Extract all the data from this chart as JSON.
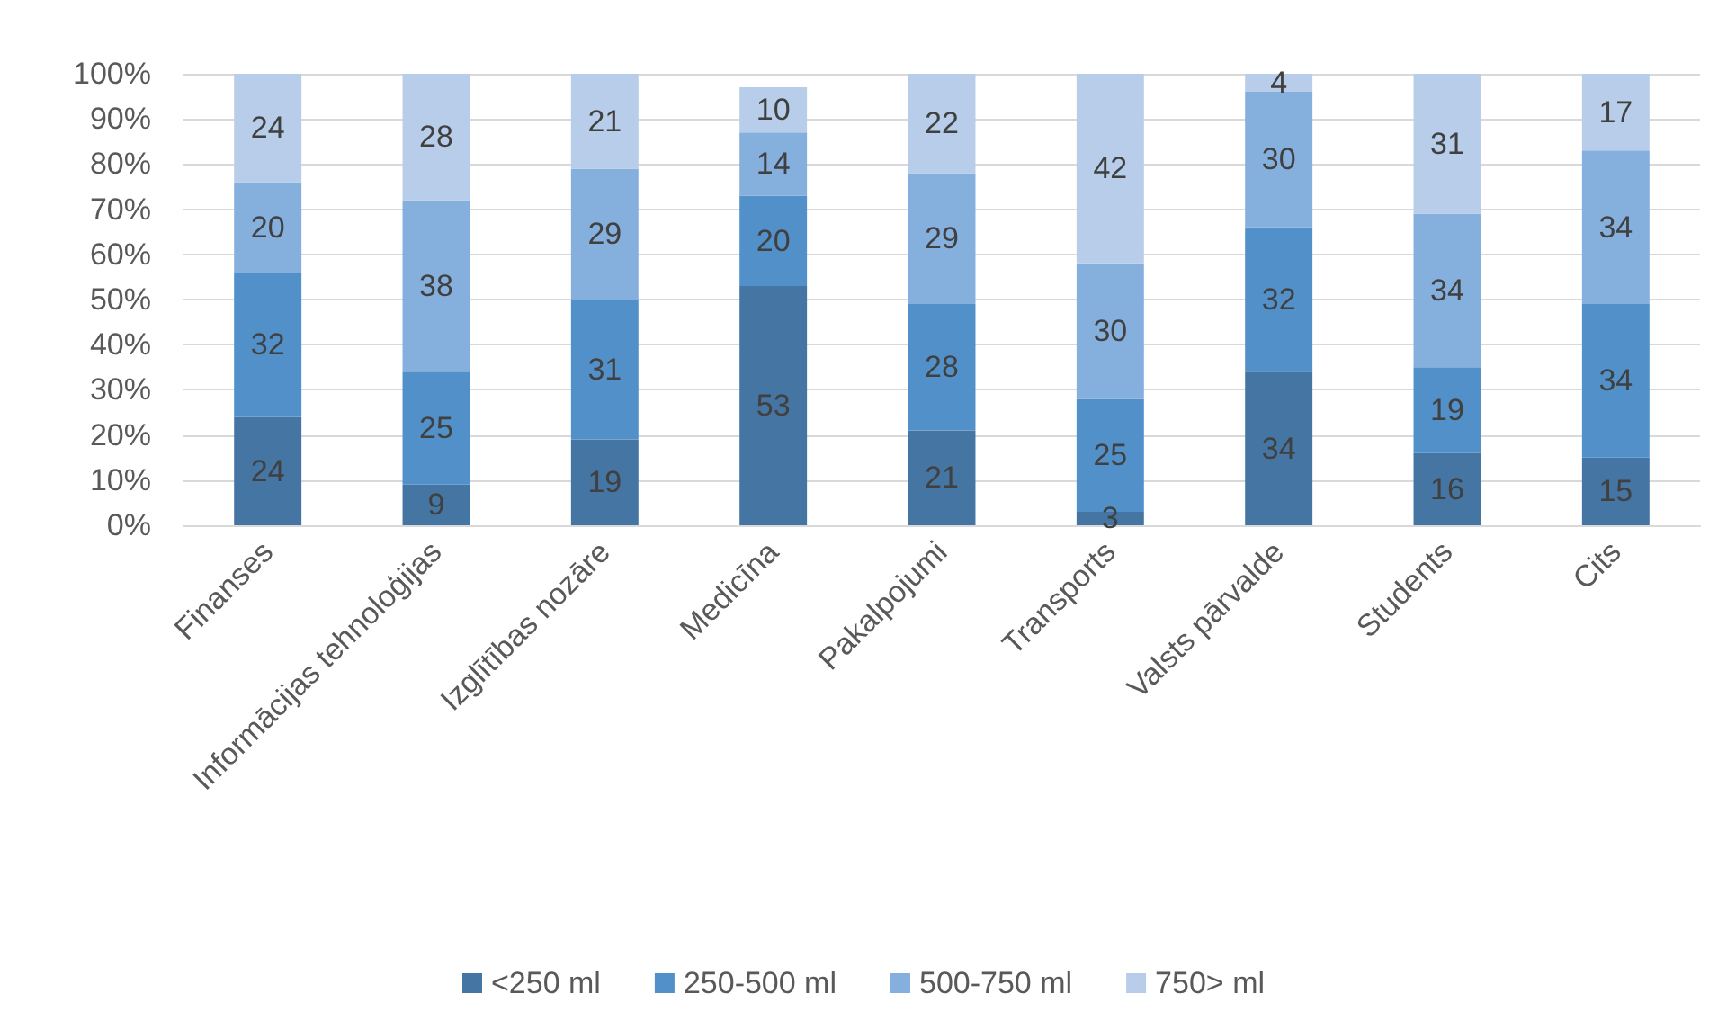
{
  "chart_data": {
    "type": "bar",
    "stacked": true,
    "categories": [
      "Finanses",
      "Informācijas tehnoloģijas",
      "Izglītības nozāre",
      "Medicīna",
      "Pakalpojumi",
      "Transports",
      "Valsts pārvalde",
      "Students",
      "Cits"
    ],
    "series": [
      {
        "name": "<250 ml",
        "color": "#4475a3",
        "values": [
          24,
          9,
          19,
          53,
          21,
          3,
          34,
          16,
          15
        ]
      },
      {
        "name": "250-500 ml",
        "color": "#5290c9",
        "values": [
          32,
          25,
          31,
          20,
          28,
          25,
          32,
          19,
          34
        ]
      },
      {
        "name": "500-750 ml",
        "color": "#85afdc",
        "values": [
          20,
          38,
          29,
          14,
          29,
          30,
          30,
          34,
          34
        ]
      },
      {
        "name": "750> ml",
        "color": "#b8cde9",
        "values": [
          24,
          28,
          21,
          10,
          22,
          42,
          4,
          31,
          17
        ]
      }
    ],
    "ylim": [
      0,
      100
    ],
    "yticks": [
      {
        "value": 0,
        "label": "0%"
      },
      {
        "value": 10,
        "label": "10%"
      },
      {
        "value": 20,
        "label": "20%"
      },
      {
        "value": 30,
        "label": "30%"
      },
      {
        "value": 40,
        "label": "40%"
      },
      {
        "value": 50,
        "label": "50%"
      },
      {
        "value": 60,
        "label": "60%"
      },
      {
        "value": 70,
        "label": "70%"
      },
      {
        "value": 80,
        "label": "80%"
      },
      {
        "value": 90,
        "label": "90%"
      },
      {
        "value": 100,
        "label": "100%"
      }
    ],
    "grid": "y",
    "legend": "bottom",
    "data_labels": true
  }
}
